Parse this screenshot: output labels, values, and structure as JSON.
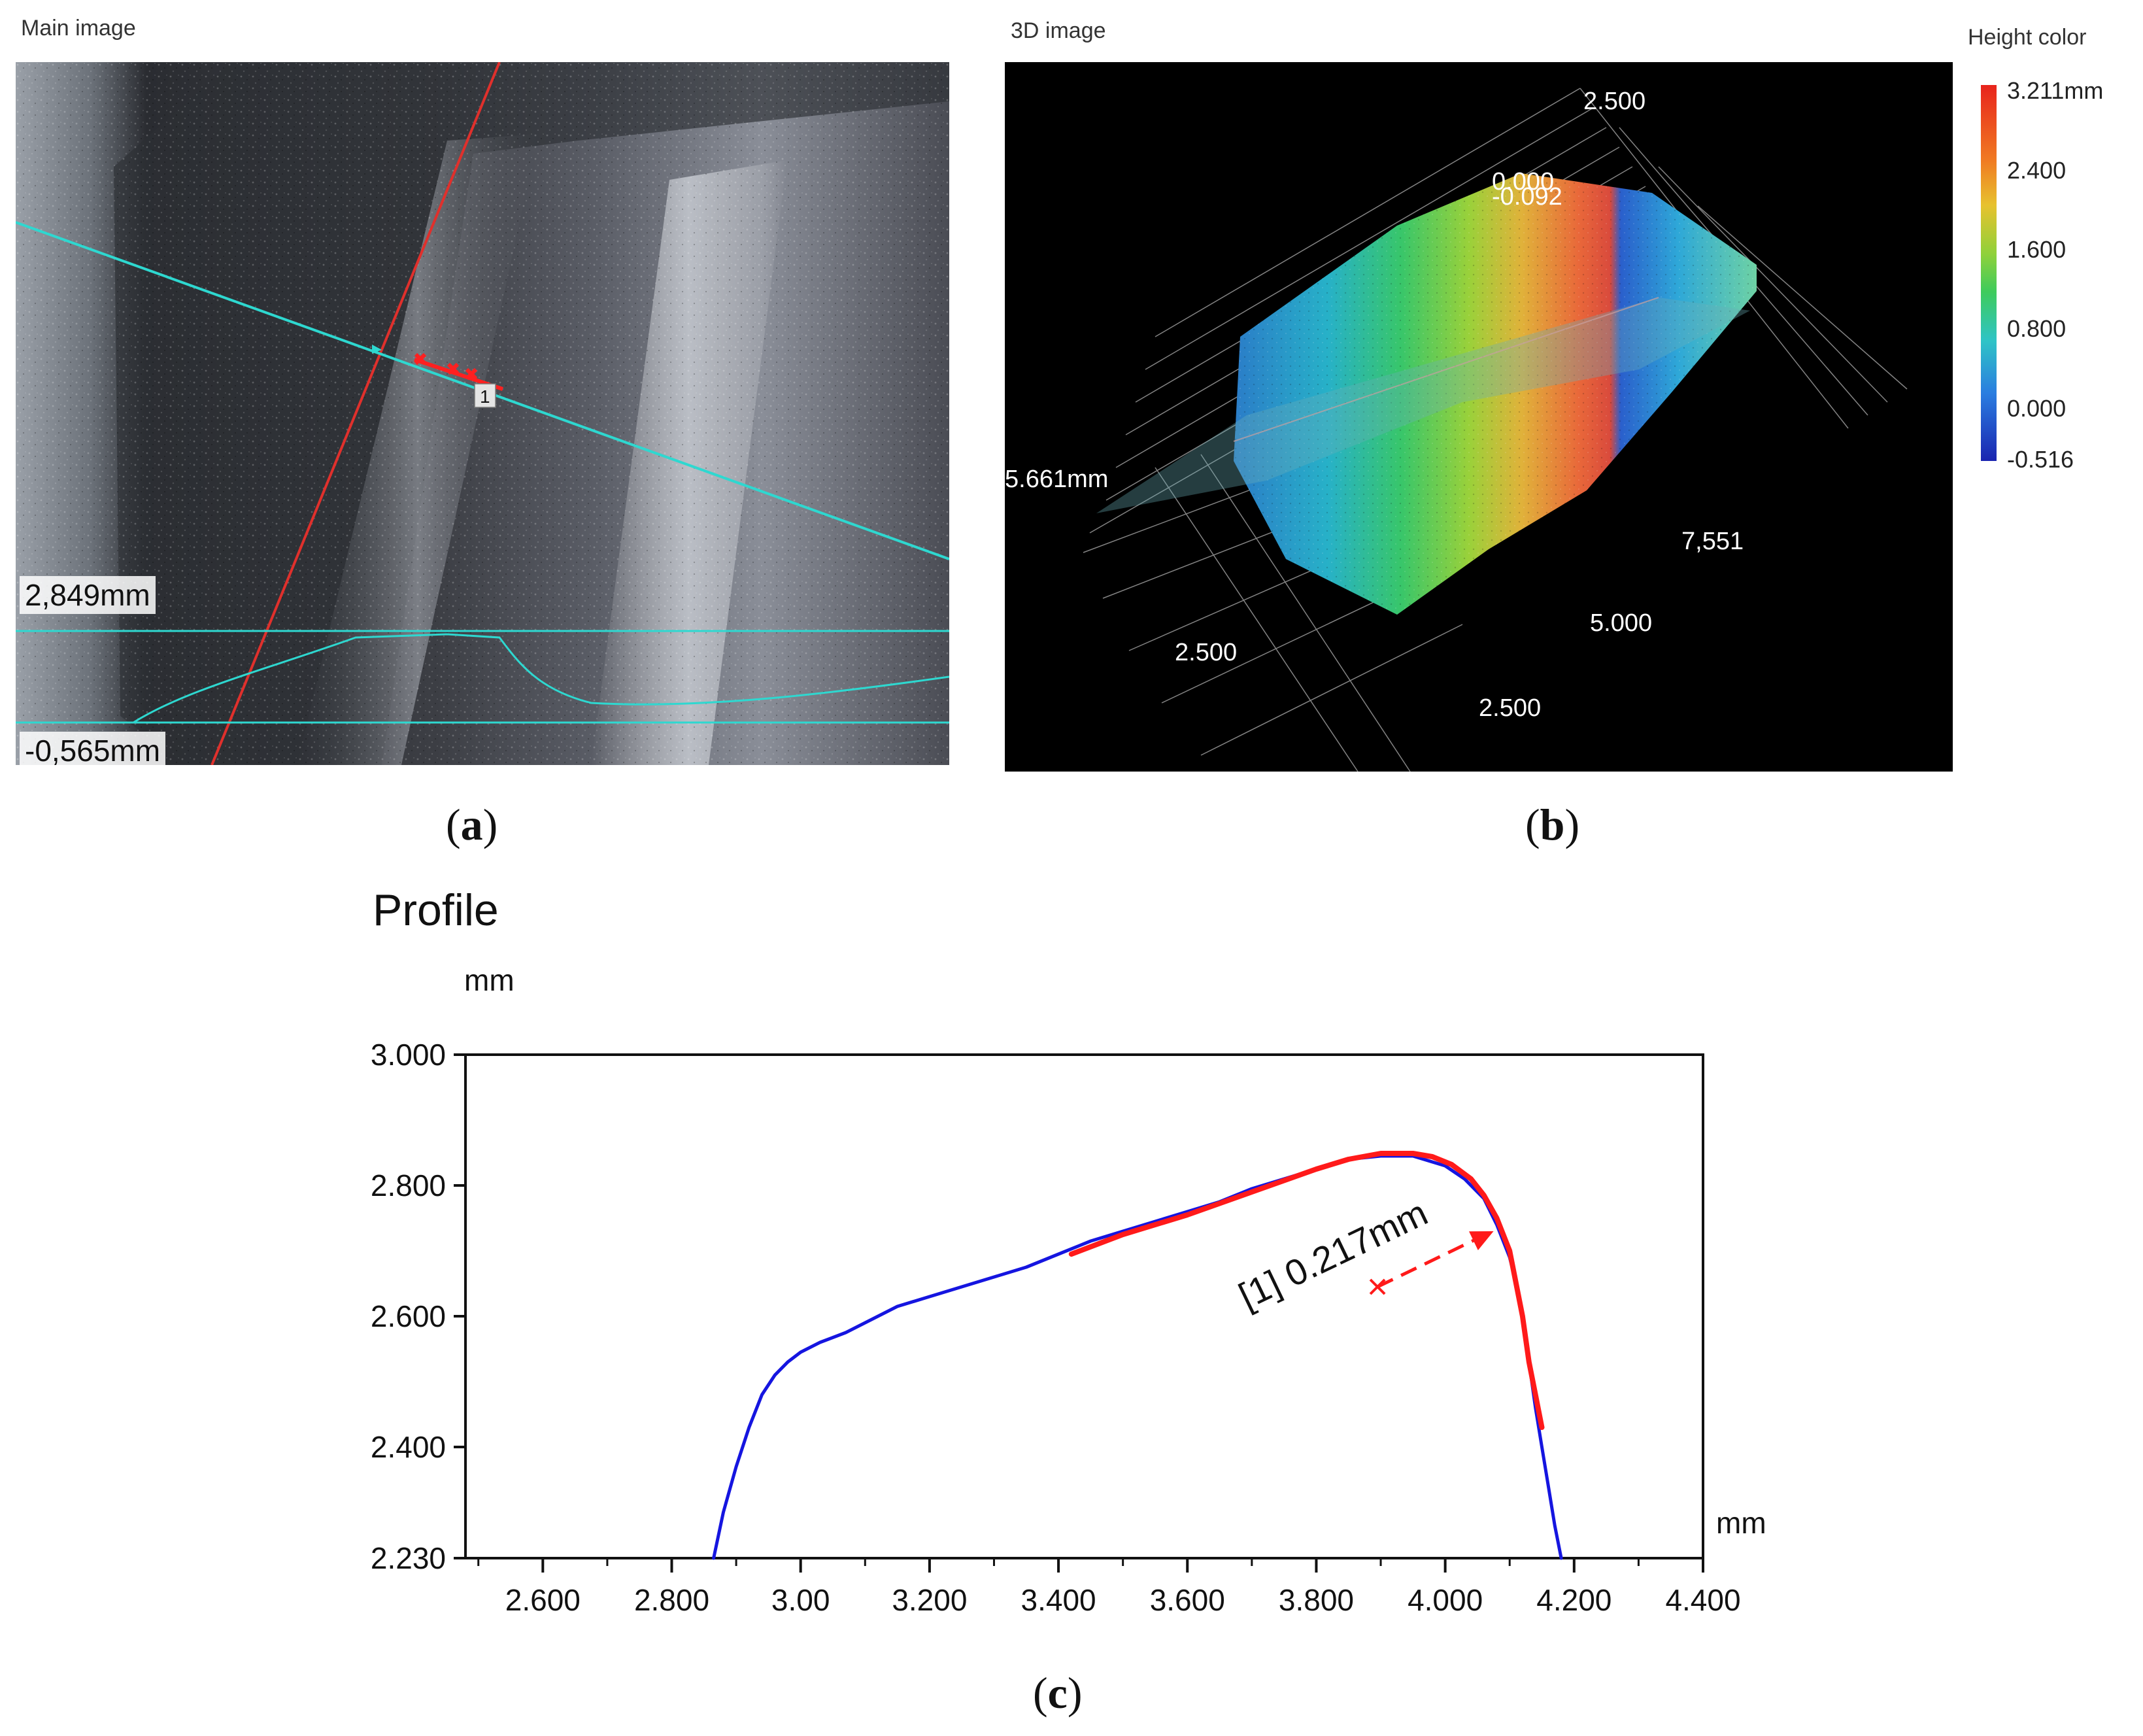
{
  "panel_a": {
    "title": "Main image",
    "upper_height_label": "2,849mm",
    "lower_height_label": "-0,565mm",
    "marker_number": "1",
    "caption": "a",
    "colors": {
      "profile_line": "#2ed8d0",
      "edge_line": "#e0302c",
      "marker": "#ff2020"
    }
  },
  "panel_b": {
    "title": "3D image",
    "scale_title": "Height color",
    "scale_labels": [
      "3.211mm",
      "2.400",
      "1.600",
      "0.800",
      "0.000",
      "-0.516"
    ],
    "axis_labels": {
      "top_2500": "2.500",
      "top_0000": "0.000",
      "top_partial": "-0.092",
      "left_mm": "5.661mm",
      "right_7551": "7,551",
      "right_5000": "5.000",
      "bottom_2500_left": "2.500",
      "bottom_2500_right": "2.500"
    },
    "caption": "b",
    "colors": {
      "background": "#000000",
      "scale_top": "#e8241c",
      "scale_bottom": "#1a24b0"
    }
  },
  "panel_c": {
    "caption": "c",
    "colors": {
      "profile": "#1515e0",
      "fit": "#ff1a1a"
    }
  },
  "chart_data": {
    "type": "line",
    "title": "Profile",
    "ylabel": "mm",
    "xlabel": "mm",
    "xlim": [
      2.48,
      4.4
    ],
    "ylim": [
      2.23,
      3.0
    ],
    "x_ticks": [
      2.6,
      2.8,
      3.0,
      3.2,
      3.4,
      3.6,
      3.8,
      4.0,
      4.2,
      4.4
    ],
    "x_tick_labels": [
      "2.600",
      "2.800",
      "3.00",
      "3.200",
      "3.400",
      "3.600",
      "3.800",
      "4.000",
      "4.200",
      "4.400"
    ],
    "y_ticks": [
      2.23,
      2.4,
      2.6,
      2.8,
      3.0
    ],
    "y_tick_labels": [
      "2.230",
      "2.400",
      "2.600",
      "2.800",
      "3.000"
    ],
    "series": [
      {
        "name": "profile",
        "x": [
          2.865,
          2.88,
          2.9,
          2.92,
          2.94,
          2.96,
          2.98,
          3.0,
          3.03,
          3.07,
          3.1,
          3.15,
          3.2,
          3.25,
          3.3,
          3.35,
          3.4,
          3.45,
          3.5,
          3.55,
          3.6,
          3.65,
          3.7,
          3.75,
          3.8,
          3.85,
          3.9,
          3.95,
          4.0,
          4.03,
          4.06,
          4.08,
          4.1,
          4.11,
          4.12,
          4.13,
          4.14,
          4.15,
          4.16,
          4.17,
          4.18
        ],
        "y": [
          2.23,
          2.3,
          2.37,
          2.43,
          2.48,
          2.51,
          2.53,
          2.545,
          2.56,
          2.575,
          2.59,
          2.615,
          2.63,
          2.645,
          2.66,
          2.675,
          2.695,
          2.715,
          2.73,
          2.745,
          2.76,
          2.775,
          2.795,
          2.81,
          2.825,
          2.84,
          2.845,
          2.845,
          2.83,
          2.81,
          2.78,
          2.74,
          2.69,
          2.65,
          2.6,
          2.53,
          2.46,
          2.4,
          2.34,
          2.28,
          2.23
        ]
      },
      {
        "name": "fit",
        "x": [
          3.42,
          3.5,
          3.6,
          3.7,
          3.8,
          3.85,
          3.9,
          3.95,
          3.98,
          4.01,
          4.04,
          4.06,
          4.08,
          4.1,
          4.12,
          4.13,
          4.14,
          4.15
        ],
        "y": [
          2.695,
          2.725,
          2.755,
          2.79,
          2.825,
          2.84,
          2.849,
          2.849,
          2.844,
          2.832,
          2.81,
          2.785,
          2.75,
          2.7,
          2.6,
          2.53,
          2.48,
          2.43
        ]
      }
    ],
    "annotation": {
      "text": "[1] 0.217mm",
      "center": [
        3.895,
        2.645
      ],
      "arrow_tip": [
        4.075,
        2.73
      ]
    }
  }
}
